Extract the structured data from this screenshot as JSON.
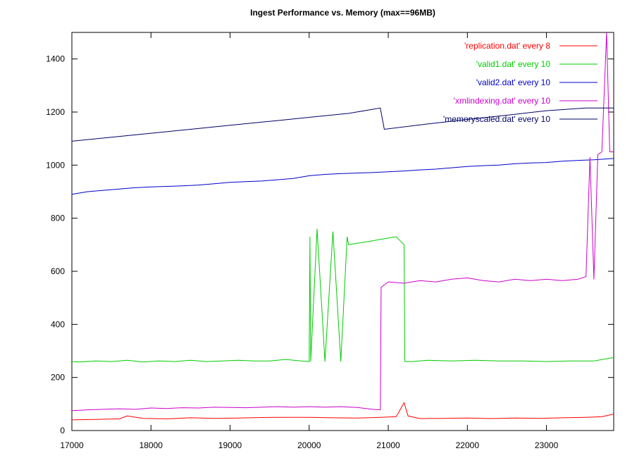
{
  "chart_data": {
    "type": "line",
    "title": "Ingest Performance vs. Memory (max==96MB)",
    "xlabel": "",
    "ylabel": "",
    "xlim": [
      17000,
      23850
    ],
    "ylim": [
      0,
      1500
    ],
    "x_ticks": [
      17000,
      18000,
      19000,
      20000,
      21000,
      22000,
      23000
    ],
    "y_ticks": [
      0,
      200,
      400,
      600,
      800,
      1000,
      1200,
      1400
    ],
    "grid": false,
    "legend_position": "top-right",
    "series": [
      {
        "name": "'replication.dat' every 8",
        "color": "#ff0000",
        "x": [
          17000,
          17300,
          17600,
          17700,
          17900,
          18200,
          18500,
          18800,
          19100,
          19400,
          19700,
          20000,
          20300,
          20600,
          20900,
          21100,
          21200,
          21250,
          21400,
          21700,
          22000,
          22300,
          22600,
          22900,
          23200,
          23500,
          23700,
          23850
        ],
        "y": [
          40,
          42,
          44,
          55,
          46,
          44,
          48,
          46,
          47,
          49,
          50,
          50,
          48,
          47,
          50,
          52,
          105,
          55,
          45,
          46,
          47,
          45,
          47,
          46,
          48,
          50,
          52,
          62
        ]
      },
      {
        "name": "'valid1.dat' every 10",
        "color": "#00cc00",
        "x": [
          17000,
          17100,
          17300,
          17500,
          17700,
          17900,
          18100,
          18300,
          18500,
          18700,
          18900,
          19100,
          19300,
          19500,
          19700,
          19900,
          20000,
          20010,
          20020,
          20100,
          20200,
          20300,
          20400,
          20480,
          20500,
          20600,
          20700,
          20800,
          20900,
          21000,
          21100,
          21200,
          21210,
          21300,
          21500,
          21800,
          22100,
          22400,
          22700,
          23000,
          23300,
          23600,
          23850
        ],
        "y": [
          260,
          258,
          262,
          260,
          265,
          258,
          262,
          260,
          265,
          260,
          262,
          265,
          262,
          262,
          268,
          262,
          260,
          730,
          260,
          760,
          260,
          750,
          260,
          730,
          700,
          705,
          710,
          715,
          720,
          725,
          730,
          700,
          260,
          260,
          265,
          262,
          265,
          262,
          262,
          260,
          262,
          262,
          275
        ]
      },
      {
        "name": "'valid2.dat' every 10",
        "color": "#0000cc",
        "x": [
          17000,
          17200,
          17400,
          17600,
          17800,
          18000,
          18200,
          18400,
          18600,
          18800,
          19000,
          19200,
          19400,
          19600,
          19800,
          20000,
          20200,
          20400,
          20600,
          20800,
          21000,
          21200,
          21400,
          21600,
          21800,
          22000,
          22200,
          22400,
          22600,
          22800,
          23000,
          23200,
          23400,
          23600,
          23850
        ],
        "y": [
          890,
          900,
          905,
          910,
          915,
          918,
          920,
          922,
          925,
          930,
          935,
          938,
          940,
          945,
          950,
          960,
          965,
          968,
          970,
          972,
          975,
          978,
          982,
          985,
          990,
          995,
          998,
          1000,
          1005,
          1008,
          1010,
          1015,
          1018,
          1020,
          1025
        ]
      },
      {
        "name": "'xmlindexing.dat' every 10",
        "color": "#cc00cc",
        "x": [
          17000,
          17200,
          17400,
          17600,
          17800,
          18000,
          18200,
          18400,
          18600,
          18800,
          19000,
          19200,
          19400,
          19600,
          19800,
          20000,
          20200,
          20400,
          20600,
          20800,
          20900,
          20910,
          21000,
          21200,
          21400,
          21600,
          21800,
          22000,
          22200,
          22400,
          22600,
          22800,
          23000,
          23200,
          23400,
          23500,
          23550,
          23600,
          23650,
          23700,
          23760,
          23800,
          23850
        ],
        "y": [
          75,
          78,
          80,
          82,
          80,
          85,
          83,
          86,
          85,
          88,
          87,
          86,
          88,
          90,
          88,
          90,
          88,
          90,
          87,
          80,
          78,
          540,
          560,
          555,
          565,
          560,
          570,
          575,
          565,
          560,
          570,
          565,
          570,
          565,
          570,
          580,
          1030,
          570,
          1040,
          1050,
          1500,
          1050,
          1050
        ]
      },
      {
        "name": "'memoryscaled.dat' every 10",
        "color": "#000066",
        "x": [
          17000,
          17500,
          18000,
          18500,
          19000,
          19500,
          20000,
          20500,
          20900,
          20950,
          21500,
          22000,
          22500,
          23000,
          23500,
          23850
        ],
        "y": [
          1090,
          1105,
          1120,
          1135,
          1150,
          1165,
          1180,
          1195,
          1215,
          1135,
          1155,
          1172,
          1188,
          1205,
          1215,
          1215
        ]
      }
    ]
  }
}
